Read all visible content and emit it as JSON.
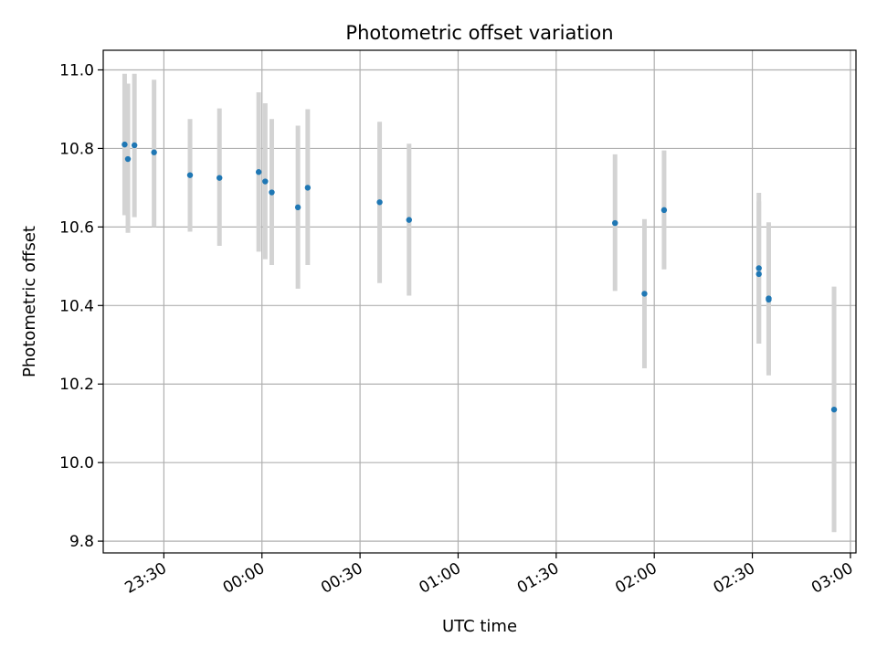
{
  "chart_data": {
    "type": "scatter",
    "title": "Photometric offset variation",
    "xlabel": "UTC time",
    "ylabel": "Photometric offset",
    "x_unit": "UTC time (HH:MM, spanning midnight)",
    "xlim": [
      "23:12",
      "03:00"
    ],
    "ylim": [
      9.77,
      11.05
    ],
    "grid": true,
    "x_ticks": [
      "23:30",
      "00:00",
      "00:30",
      "01:00",
      "01:30",
      "02:00",
      "02:30",
      "03:00"
    ],
    "y_ticks": [
      "9.8",
      "10.0",
      "10.2",
      "10.4",
      "10.6",
      "10.8",
      "11.0"
    ],
    "y_tick_values": [
      9.8,
      10.0,
      10.2,
      10.4,
      10.6,
      10.8,
      11.0
    ],
    "point_color": "#1f77b4",
    "errorbar_color": "#d3d3d3",
    "points": [
      {
        "x": "23:18",
        "y": 10.81,
        "ylow": 10.63,
        "yhigh": 10.99
      },
      {
        "x": "23:19",
        "y": 10.773,
        "ylow": 10.585,
        "yhigh": 10.965
      },
      {
        "x": "23:21",
        "y": 10.808,
        "ylow": 10.625,
        "yhigh": 10.99
      },
      {
        "x": "23:27",
        "y": 10.79,
        "ylow": 10.6,
        "yhigh": 10.975
      },
      {
        "x": "23:38",
        "y": 10.732,
        "ylow": 10.588,
        "yhigh": 10.875
      },
      {
        "x": "23:47",
        "y": 10.725,
        "ylow": 10.552,
        "yhigh": 10.902
      },
      {
        "x": "23:59",
        "y": 10.74,
        "ylow": 10.537,
        "yhigh": 10.943
      },
      {
        "x": "00:01",
        "y": 10.716,
        "ylow": 10.518,
        "yhigh": 10.915
      },
      {
        "x": "00:03",
        "y": 10.688,
        "ylow": 10.503,
        "yhigh": 10.875
      },
      {
        "x": "00:11",
        "y": 10.65,
        "ylow": 10.443,
        "yhigh": 10.858
      },
      {
        "x": "00:14",
        "y": 10.7,
        "ylow": 10.503,
        "yhigh": 10.9
      },
      {
        "x": "00:36",
        "y": 10.663,
        "ylow": 10.457,
        "yhigh": 10.868
      },
      {
        "x": "00:45",
        "y": 10.618,
        "ylow": 10.425,
        "yhigh": 10.812
      },
      {
        "x": "01:48",
        "y": 10.61,
        "ylow": 10.437,
        "yhigh": 10.785
      },
      {
        "x": "01:57",
        "y": 10.43,
        "ylow": 10.24,
        "yhigh": 10.62
      },
      {
        "x": "02:03",
        "y": 10.643,
        "ylow": 10.492,
        "yhigh": 10.795
      },
      {
        "x": "02:32",
        "y": 10.495,
        "ylow": 10.303,
        "yhigh": 10.687
      },
      {
        "x": "02:32",
        "y": 10.48,
        "ylow": 10.303,
        "yhigh": 10.665
      },
      {
        "x": "02:35",
        "y": 10.415,
        "ylow": 10.222,
        "yhigh": 10.612
      },
      {
        "x": "02:35",
        "y": 10.418,
        "ylow": 10.232,
        "yhigh": 10.608
      },
      {
        "x": "02:55",
        "y": 10.135,
        "ylow": 9.823,
        "yhigh": 10.448
      }
    ]
  }
}
